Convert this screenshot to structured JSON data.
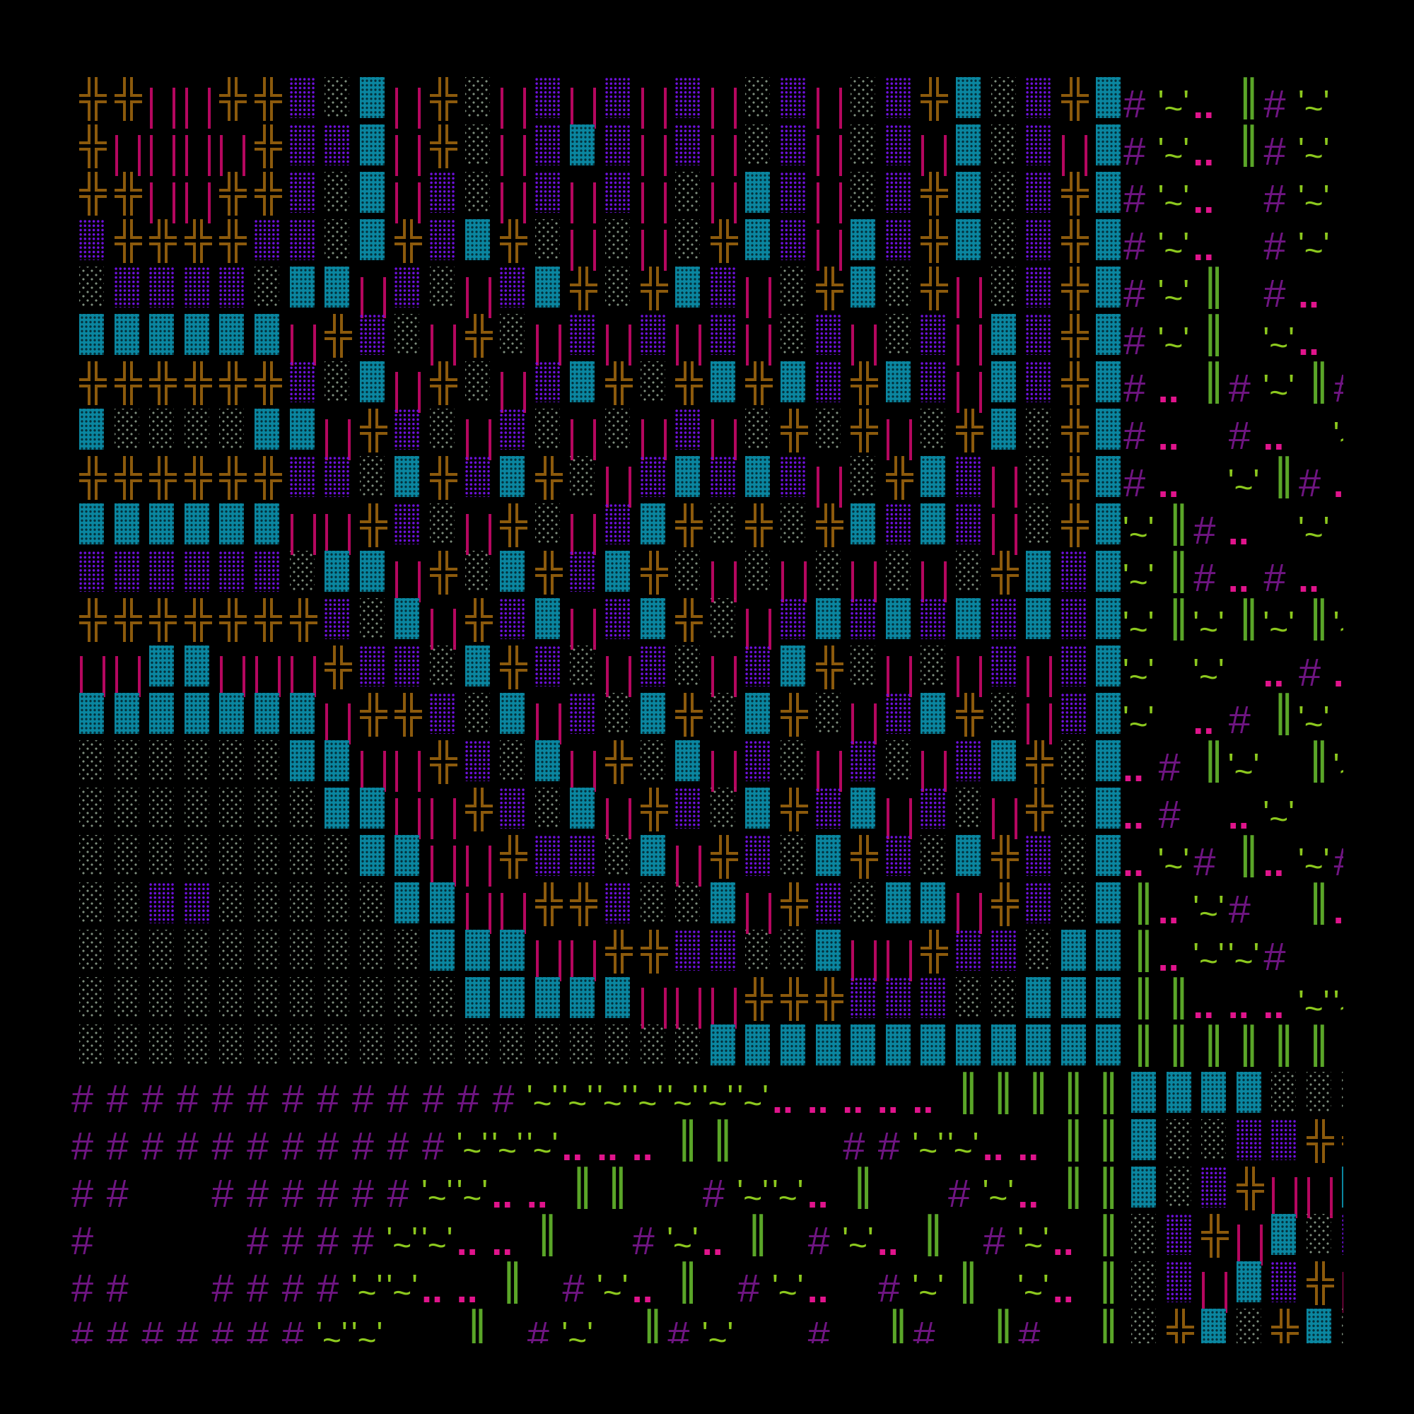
{
  "palette": {
    "background": "#000000",
    "double_cross": "#8c5a0c",
    "bars": "#b5075f",
    "violet_dots": "#7010e0",
    "gray_dots": "#7e8e7e",
    "teal_block": "#0a86a0",
    "hash": "#6f1582",
    "tilde": "#8cc81e",
    "dots": "#e0148c",
    "double_bar": "#5aa628"
  },
  "legend": {
    "P": {
      "kind": "tile",
      "icon": "double-cross-tile-icon"
    },
    "B": {
      "kind": "tile",
      "icon": "double-bar-magenta-tile-icon"
    },
    "V": {
      "kind": "tile",
      "icon": "violet-dot-tile-icon"
    },
    "G": {
      "kind": "tile",
      "icon": "gray-dot-tile-icon"
    },
    "T": {
      "kind": "tile",
      "icon": "teal-block-tile-icon"
    },
    "#": {
      "kind": "glyph",
      "icon": "hash-glyph",
      "text": "#"
    },
    "W": {
      "kind": "glyph",
      "icon": "tilde-glyph",
      "text": "'~'"
    },
    "D": {
      "kind": "glyph",
      "icon": "dots-glyph",
      "text": ".."
    },
    "L": {
      "kind": "glyph",
      "icon": "double-bar-glyph",
      "text": "‖"
    }
  },
  "map": {
    "rows": [
      "PPBBPPVGTBPGBVBVBVBGVBGVPTGVPT#WDL#W.",
      "PBBBBPVVTBPGBVTVBVBGVBGVBTGVBT#WDL#W.",
      "PPBBPPVGTBVGBVBVBGBTVBGVPTGVPT#WD.#W.",
      "VPPPPVVGTPVTPGBGBGPTVBTVPTGVPT#WD.#W.",
      "GVVVVGTTBVGBVTPGPTVBGPTGPBGVPT#WL.#D.",
      "TTTTTTBPVGBPGBVBVBVBGVBGVBTVPT#WL.WD.",
      "PPPPPPVGTBPGBVTPGPTPTVPTVBTVPT#DL#WL#",
      "TGGGGTTBPVGBVGBGBVBGPGPBGPTGPT#D.#D.W",
      "PPPPPPVVGTPVTPGBVTVTVBGPTVBGPT#D.WL#D",
      "TTTTTTBBPVGBPGBVTPGPGPTVTVBGPTWL#D.W.",
      "VVVVVVGTTBPGTPVTPGBGBGBGBGPTVTWL#D#D.",
      "PPPPPPPVGTBPVTBVTPGBVTVTVTVTVTWLWLWLW",
      "BBTTBBBPVVGTPVGBVGBVTPGBGBVBVTW.W.D#D",
      "TTTTTTTBPPVGTBVGTPGTPGBVTPGBVTW.D#LW.",
      "GGGGGGTTBBPVGTBPGTBVGBVGBVTPGTD#LW.LW",
      "GGGGGGGTTBBPVGTBPVGTPVTBVGBPGTD#.DW..",
      "GGGGGGGGTTBBPVVGTBPVGTPVGTPVGTDW#LDW#",
      "GGVVGGGGGTTBBPPVGGTBPVGTTBPVGTLDW#.LD",
      "GGGGGGGGGGTTTBBPPVVGGTBBPVVGTTLDWW#..",
      "GGGGGGGGGGGTTTTTBBBPPPVVVGGTTTLLDDDWW",
      "GGGGGGGGGGGGGGGGGGTTTTTTTTTTTTLLLLLL.",
      "#############WWWWWWWDDDDDLLLLLTTTTGGG",
      "###########WWWDDDLL...##WWDDLLTGGVVPP",
      "##..######WWDDLL..#WWDL..#WDLLTGVPBBT",
      "#....####WWDDL..#WDL.#WDL.#WDLGVPBTGV",
      "##..####WWDDL.#WDL.#WD.#WL.WDLGVBTVPB",
      "#######WW..L.#W.L#W..#.L#.L#.LGPTGPTG"
    ]
  }
}
